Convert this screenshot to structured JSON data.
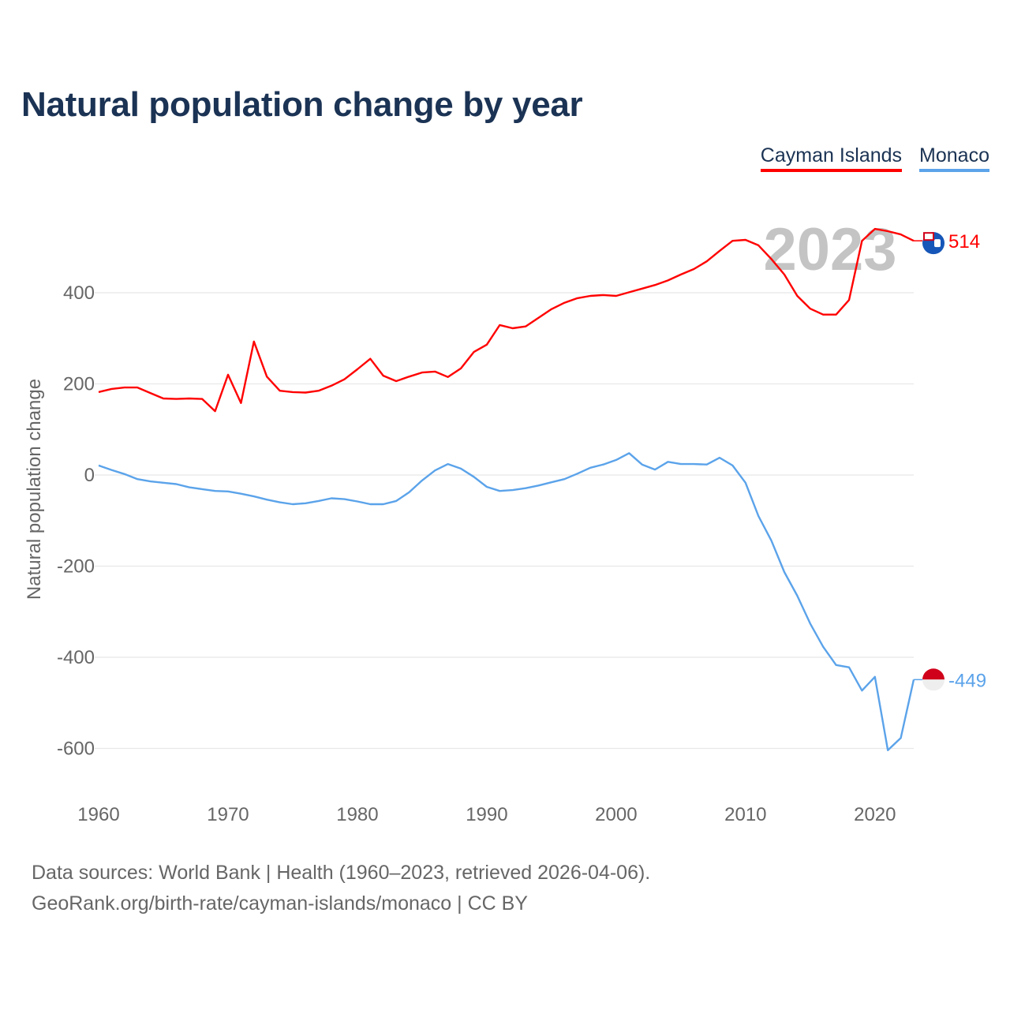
{
  "title": "Natural population change by year",
  "legend": [
    {
      "label": "Cayman Islands",
      "color": "#ff0000"
    },
    {
      "label": "Monaco",
      "color": "#5ba3ea"
    }
  ],
  "year_watermark": "2023",
  "footer": {
    "line1": "Data sources: World Bank | Health (1960–2023, retrieved 2026-04-06).",
    "line2": "GeoRank.org/birth-rate/cayman-islands/monaco | CC BY"
  },
  "chart_data": {
    "type": "line",
    "title": "Natural population change by year",
    "xlabel": "",
    "ylabel": "Natural population change",
    "xlim": [
      1960,
      2023
    ],
    "ylim": [
      -700,
      600
    ],
    "yticks": [
      400,
      200,
      0,
      -200,
      -400,
      -600
    ],
    "xticks": [
      1960,
      1970,
      1980,
      1990,
      2000,
      2010,
      2020
    ],
    "grid": true,
    "legend_position": "top-right",
    "x_start": 1960,
    "series": [
      {
        "name": "Cayman Islands",
        "color": "#ff0000",
        "end_label": "514",
        "flag": "cayman-islands-flag",
        "values": [
          182,
          189,
          192,
          192,
          180,
          168,
          167,
          168,
          167,
          140,
          220,
          158,
          293,
          216,
          185,
          182,
          181,
          185,
          196,
          210,
          232,
          255,
          218,
          206,
          216,
          225,
          227,
          215,
          234,
          270,
          286,
          329,
          322,
          326,
          345,
          364,
          378,
          388,
          393,
          395,
          393,
          401,
          409,
          417,
          427,
          440,
          452,
          469,
          492,
          514,
          516,
          504,
          474,
          440,
          393,
          365,
          352,
          352,
          384,
          514,
          540,
          535,
          528,
          514
        ]
      },
      {
        "name": "Monaco",
        "color": "#5ba3ea",
        "end_label": "-449",
        "flag": "monaco-flag",
        "values": [
          21,
          11,
          2,
          -9,
          -14,
          -17,
          -20,
          -27,
          -31,
          -35,
          -36,
          -41,
          -47,
          -54,
          -60,
          -64,
          -62,
          -57,
          -51,
          -53,
          -58,
          -64,
          -64,
          -57,
          -38,
          -12,
          10,
          24,
          14,
          -4,
          -26,
          -35,
          -33,
          -29,
          -23,
          -16,
          -9,
          3,
          16,
          23,
          33,
          48,
          23,
          12,
          29,
          24,
          24,
          23,
          38,
          21,
          -17,
          -90,
          -144,
          -213,
          -265,
          -326,
          -377,
          -417,
          -422,
          -473,
          -443,
          -604,
          -577,
          -449
        ]
      }
    ]
  }
}
